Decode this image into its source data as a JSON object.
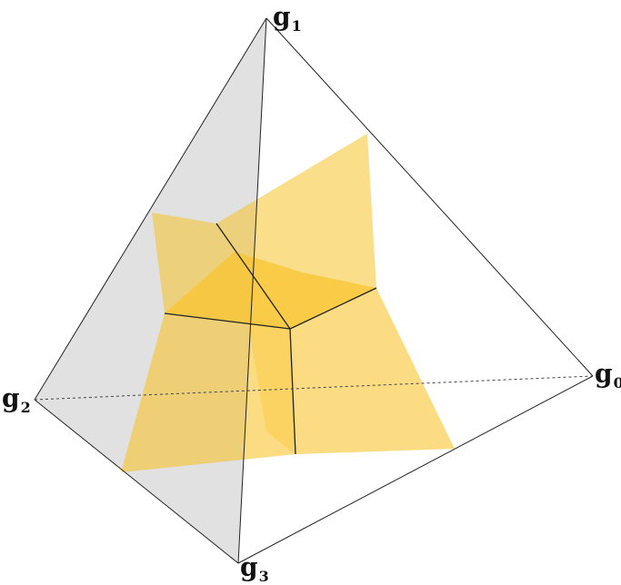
{
  "diagram": {
    "vertices": {
      "g1": {
        "base": "g",
        "sub": "1"
      },
      "g0": {
        "base": "g",
        "sub": "0"
      },
      "g2": {
        "base": "g",
        "sub": "2"
      },
      "g3": {
        "base": "g",
        "sub": "3"
      }
    },
    "colors": {
      "edge": "#222222",
      "hidden_edge": "#444444",
      "back_face": "#dcdcdc",
      "sheet": "#f8c329",
      "sheet_dark": "#eeb414"
    }
  }
}
